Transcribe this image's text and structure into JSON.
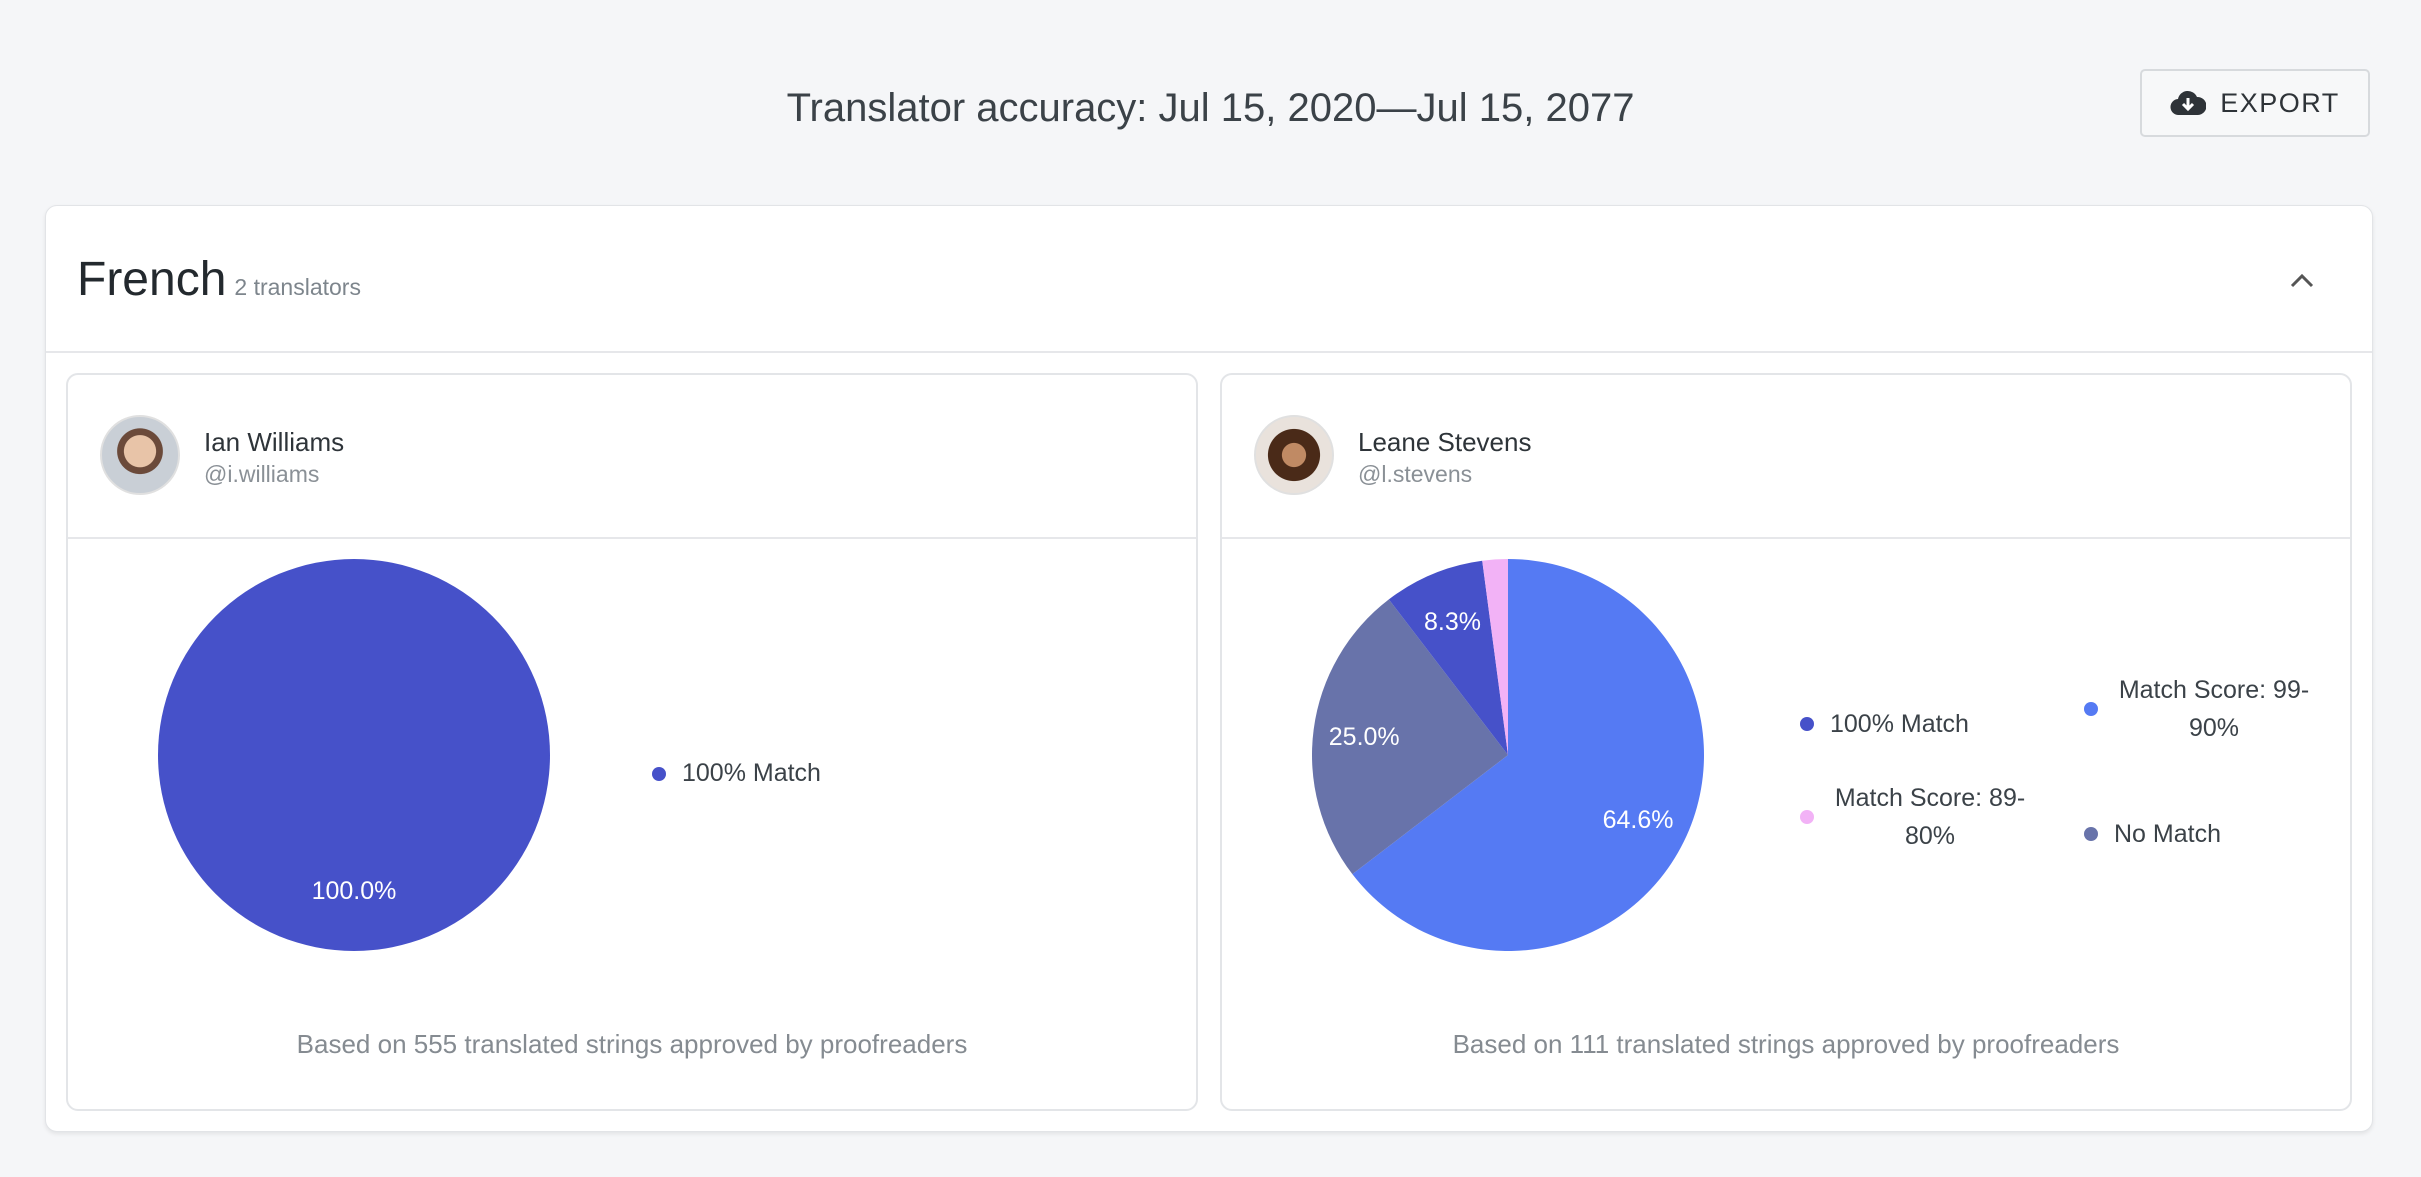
{
  "header": {
    "title": "Translator accuracy: Jul 15, 2020—Jul 15, 2077",
    "export_label": "EXPORT",
    "export_icon": "cloud-download-icon"
  },
  "group": {
    "language": "French",
    "count_label": "2 translators",
    "collapse_icon": "chevron-up-icon"
  },
  "colors": {
    "match_100": "#4651c9",
    "match_99_90": "#557af3",
    "match_89_80": "#f2b2f6",
    "no_match": "#6873aa"
  },
  "translators": [
    {
      "name": "Ian Williams",
      "handle": "@i.williams",
      "footer": "Based on 555 translated strings approved by proofreaders",
      "legend": [
        {
          "label": "100% Match"
        }
      ]
    },
    {
      "name": "Leane Stevens",
      "handle": "@l.stevens",
      "footer": "Based on 111 translated strings approved by proofreaders",
      "legend": [
        {
          "label": "100% Match"
        },
        {
          "label": "Match Score: 99-90%"
        },
        {
          "label": "Match Score: 89-80%"
        },
        {
          "label": "No Match"
        }
      ]
    }
  ],
  "chart_data": [
    {
      "type": "pie",
      "series": [
        {
          "name": "100% Match",
          "value": 100.0,
          "label": "100.0%"
        }
      ]
    },
    {
      "type": "pie",
      "series": [
        {
          "name": "Match Score: 99-90%",
          "value": 64.6,
          "label": "64.6%"
        },
        {
          "name": "No Match",
          "value": 25.0,
          "label": "25.0%"
        },
        {
          "name": "100% Match",
          "value": 8.3,
          "label": "8.3%"
        },
        {
          "name": "Match Score: 89-80%",
          "value": 2.1,
          "label": ""
        }
      ]
    }
  ]
}
